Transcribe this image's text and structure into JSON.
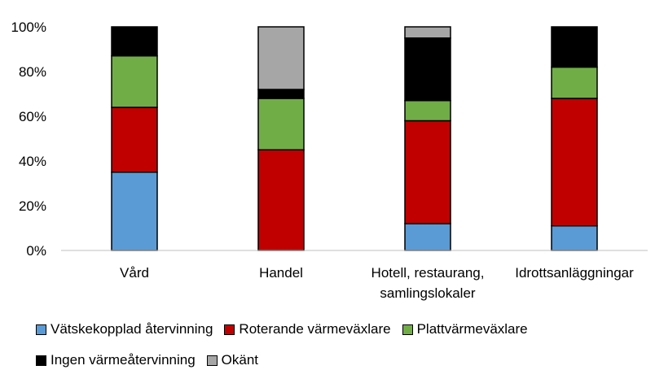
{
  "chart_data": {
    "type": "bar",
    "stacked": true,
    "categories": [
      "Vård",
      "Handel",
      "Hotell, restaurang, samlingslokaler",
      "Idrottsanläggningar"
    ],
    "category_lines": [
      [
        "Vård"
      ],
      [
        "Handel"
      ],
      [
        "Hotell, restaurang,",
        "samlingslokaler"
      ],
      [
        "Idrottsanläggningar"
      ]
    ],
    "series": [
      {
        "name": "Vätskekopplad återvinning",
        "color": "#5B9BD5",
        "values": [
          35,
          0,
          12,
          11
        ]
      },
      {
        "name": "Roterande värmeväxlare",
        "color": "#C00000",
        "values": [
          29,
          45,
          46,
          57
        ]
      },
      {
        "name": "Plattvärmeväxlare",
        "color": "#70AD47",
        "values": [
          23,
          23,
          9,
          14
        ]
      },
      {
        "name": "Ingen värmeåtervinning",
        "color": "#000000",
        "values": [
          13,
          4,
          28,
          18
        ]
      },
      {
        "name": "Okänt",
        "color": "#A6A6A6",
        "values": [
          0,
          28,
          5,
          0
        ]
      }
    ],
    "yticks": [
      "0%",
      "20%",
      "40%",
      "60%",
      "80%",
      "100%"
    ],
    "ylim": [
      0,
      100
    ],
    "grid": false,
    "legend_position": "bottom",
    "title": "",
    "xlabel": "",
    "ylabel": ""
  }
}
